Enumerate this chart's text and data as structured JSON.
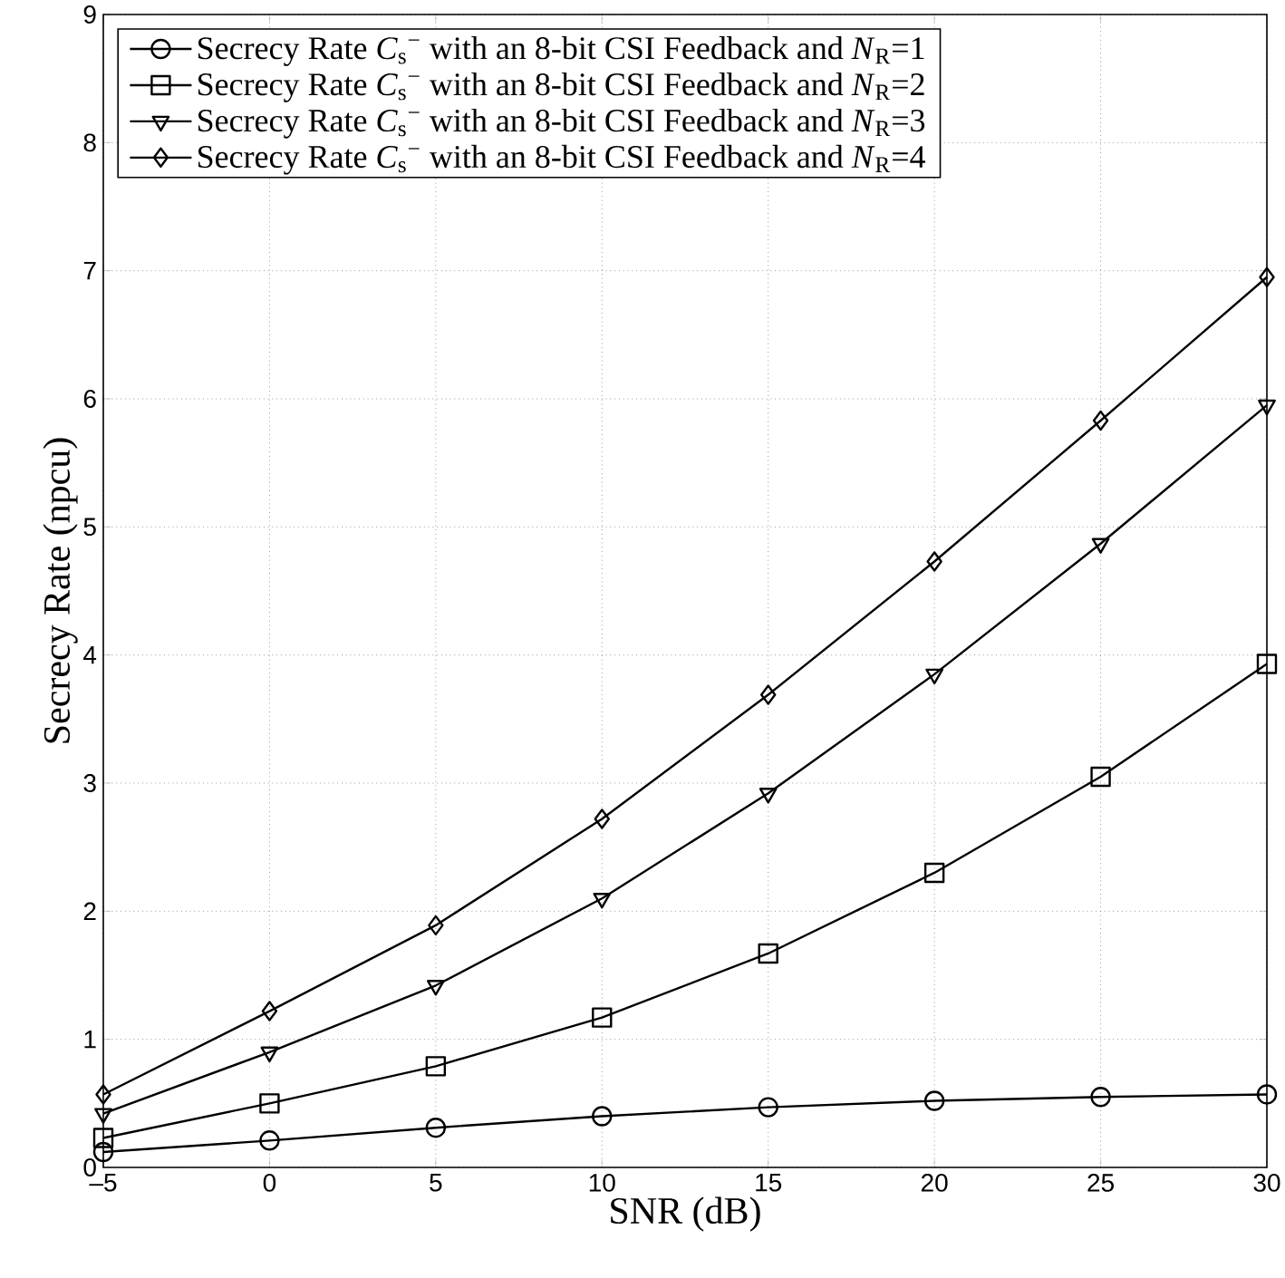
{
  "chart_data": {
    "type": "line",
    "xlabel": "SNR (dB)",
    "ylabel": "Secrecy Rate (npcu)",
    "x": [
      -5,
      0,
      5,
      10,
      15,
      20,
      25,
      30
    ],
    "series": [
      {
        "name": "Secrecy Rate *C*$_{s}$$^{−}$ with an 8-bit CSI Feedback and *N*$_{R}$=1",
        "color": "#000000",
        "marker": "circle",
        "values": [
          0.12,
          0.21,
          0.31,
          0.4,
          0.47,
          0.52,
          0.55,
          0.57
        ]
      },
      {
        "name": "Secrecy Rate *C*$_{s}$$^{−}$ with an 8-bit CSI Feedback and *N*$_{R}$=2",
        "color": "#000000",
        "marker": "square",
        "values": [
          0.23,
          0.5,
          0.79,
          1.17,
          1.67,
          2.3,
          3.05,
          3.93
        ]
      },
      {
        "name": "Secrecy Rate *C*$_{s}$$^{−}$ with an 8-bit CSI Feedback and *N*$_{R}$=3",
        "color": "#000000",
        "marker": "triangle",
        "values": [
          0.42,
          0.9,
          1.42,
          2.1,
          2.92,
          3.85,
          4.87,
          5.95
        ]
      },
      {
        "name": "Secrecy Rate *C*$_{s}$$^{−}$ with an 8-bit CSI Feedback and *N*$_{R}$=4",
        "color": "#000000",
        "marker": "diamond",
        "values": [
          0.57,
          1.22,
          1.89,
          2.72,
          3.69,
          4.73,
          5.83,
          6.95
        ]
      }
    ],
    "xlim": [
      -5,
      30
    ],
    "xticks": [
      {
        "value": -5,
        "label": "–5"
      },
      0,
      5,
      10,
      15,
      20,
      25,
      30
    ],
    "ylim": [
      0,
      9
    ],
    "yticks": [
      0,
      1,
      2,
      3,
      4,
      5,
      6,
      7,
      8,
      9
    ],
    "grid": true,
    "legend": "top left",
    "line_style": "solid"
  }
}
